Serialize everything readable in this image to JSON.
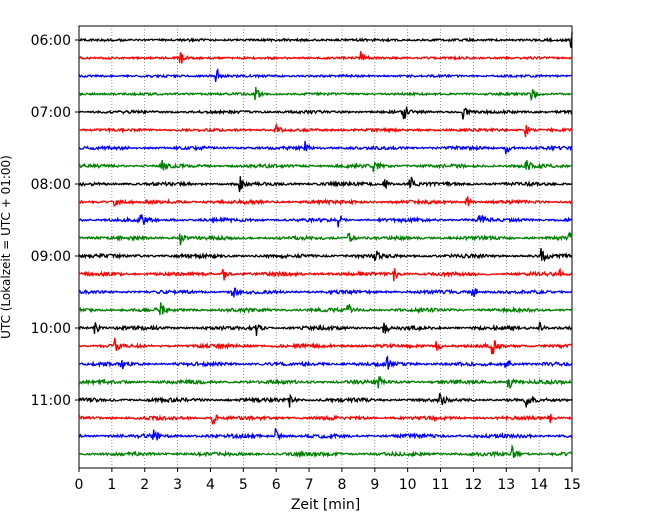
{
  "chart_data": {
    "type": "line",
    "title": "",
    "xlabel": "Zeit  [min]",
    "ylabel": "UTC (Lokalzeit = UTC + 01:00)",
    "xlim": [
      0,
      15
    ],
    "x_ticks": [
      "0",
      "1",
      "2",
      "3",
      "4",
      "5",
      "6",
      "7",
      "8",
      "9",
      "10",
      "11",
      "12",
      "13",
      "14",
      "15"
    ],
    "y_ticks": [
      "06:00",
      "07:00",
      "08:00",
      "09:00",
      "10:00",
      "11:00"
    ],
    "grid": "vertical dotted lines at each minute",
    "trace_interval_minutes": 15,
    "trace_colors": [
      "#000000",
      "#ff0000",
      "#0000ff",
      "#008000"
    ],
    "traces": [
      {
        "start": "06:00",
        "color": "#000000",
        "events": [
          15.0
        ],
        "noise": 0.4
      },
      {
        "start": "06:15",
        "color": "#ff0000",
        "events": [
          3.1,
          8.6
        ],
        "noise": 0.3
      },
      {
        "start": "06:30",
        "color": "#0000ff",
        "events": [
          4.2
        ],
        "noise": 0.3
      },
      {
        "start": "06:45",
        "color": "#008000",
        "events": [
          5.4,
          13.8
        ],
        "noise": 0.3
      },
      {
        "start": "07:00",
        "color": "#000000",
        "events": [
          9.9,
          11.7
        ],
        "noise": 0.6
      },
      {
        "start": "07:15",
        "color": "#ff0000",
        "events": [
          6.0,
          13.6
        ],
        "noise": 0.5
      },
      {
        "start": "07:30",
        "color": "#0000ff",
        "events": [
          6.9,
          13.0
        ],
        "noise": 0.7
      },
      {
        "start": "07:45",
        "color": "#008000",
        "events": [
          2.5,
          9.0,
          13.6
        ],
        "noise": 0.8
      },
      {
        "start": "08:00",
        "color": "#000000",
        "events": [
          4.9,
          9.3,
          10.1
        ],
        "noise": 0.8
      },
      {
        "start": "08:15",
        "color": "#ff0000",
        "events": [
          1.1,
          11.8
        ],
        "noise": 0.9
      },
      {
        "start": "08:30",
        "color": "#0000ff",
        "events": [
          1.9,
          7.9,
          12.2
        ],
        "noise": 0.9
      },
      {
        "start": "08:45",
        "color": "#008000",
        "events": [
          3.1,
          8.2,
          14.9
        ],
        "noise": 0.8
      },
      {
        "start": "09:00",
        "color": "#000000",
        "events": [
          9.0,
          14.1
        ],
        "noise": 0.9
      },
      {
        "start": "09:15",
        "color": "#ff0000",
        "events": [
          4.4,
          9.6,
          14.6
        ],
        "noise": 0.9
      },
      {
        "start": "09:30",
        "color": "#0000ff",
        "events": [
          4.7,
          12.0
        ],
        "noise": 0.8
      },
      {
        "start": "09:45",
        "color": "#008000",
        "events": [
          2.5,
          8.2
        ],
        "noise": 0.9
      },
      {
        "start": "10:00",
        "color": "#000000",
        "events": [
          0.5,
          5.4,
          9.3,
          14.0
        ],
        "noise": 1.0
      },
      {
        "start": "10:15",
        "color": "#ff0000",
        "events": [
          1.1,
          10.9,
          12.6
        ],
        "noise": 0.9
      },
      {
        "start": "10:30",
        "color": "#0000ff",
        "events": [
          1.3,
          9.4,
          13.0
        ],
        "noise": 0.9
      },
      {
        "start": "10:45",
        "color": "#008000",
        "events": [
          9.1,
          13.1
        ],
        "noise": 0.9
      },
      {
        "start": "11:00",
        "color": "#000000",
        "events": [
          6.4,
          11.0,
          13.6
        ],
        "noise": 1.0
      },
      {
        "start": "11:15",
        "color": "#ff0000",
        "events": [
          4.1,
          14.3
        ],
        "noise": 0.9
      },
      {
        "start": "11:30",
        "color": "#0000ff",
        "events": [
          2.3,
          6.0
        ],
        "noise": 1.0
      },
      {
        "start": "11:45",
        "color": "#008000",
        "events": [
          13.2
        ],
        "noise": 0.9
      }
    ]
  }
}
